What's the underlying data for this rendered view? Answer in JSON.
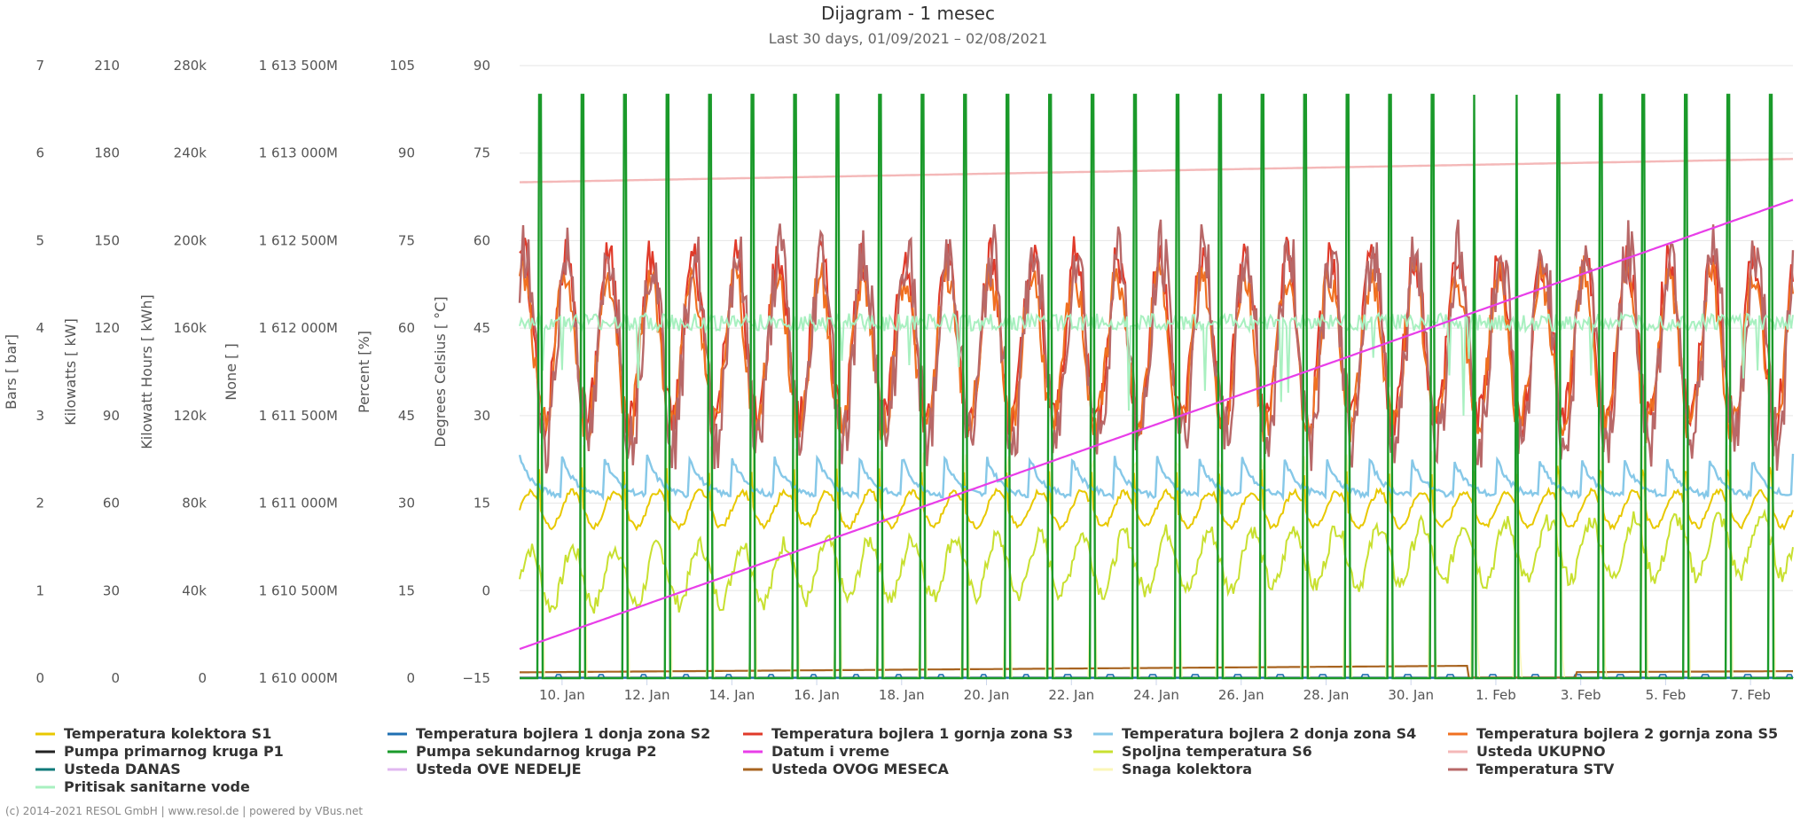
{
  "header": {
    "title": "Dijagram - 1 mesec",
    "subtitle": "Last 30 days, 01/09/2021 – 02/08/2021"
  },
  "credits": "(c) 2014–2021 RESOL GmbH | www.resol.de | powered by VBus.net",
  "chart_data": {
    "type": "line",
    "title": "Dijagram - 1 mesec",
    "subtitle": "Last 30 days, 01/09/2021 – 02/08/2021",
    "grid": true,
    "legend_position": "bottom",
    "x_axis": {
      "unit": "date",
      "range": [
        "2021-01-09",
        "2021-02-08"
      ],
      "tick_labels": [
        "10. Jan",
        "12. Jan",
        "14. Jan",
        "16. Jan",
        "18. Jan",
        "20. Jan",
        "22. Jan",
        "24. Jan",
        "26. Jan",
        "28. Jan",
        "30. Jan",
        "1. Feb",
        "3. Feb",
        "5. Feb",
        "7. Feb"
      ]
    },
    "y_axes": [
      {
        "title": "Bars [ bar]",
        "ticks": [
          "0",
          "1",
          "2",
          "3",
          "4",
          "5",
          "6",
          "7"
        ]
      },
      {
        "title": "Kilowatts [ kW]",
        "ticks": [
          "0",
          "30",
          "60",
          "90",
          "120",
          "150",
          "180",
          "210"
        ]
      },
      {
        "title": "Kilowatt Hours [ kWh]",
        "ticks": [
          "0",
          "40k",
          "80k",
          "120k",
          "160k",
          "200k",
          "240k",
          "280k"
        ]
      },
      {
        "title": "None [ ]",
        "ticks": [
          "1 610 000M",
          "1 610 500M",
          "1 611 000M",
          "1 611 500M",
          "1 612 000M",
          "1 612 500M",
          "1 613 000M",
          "1 613 500M"
        ]
      },
      {
        "title": "Percent [%]",
        "ticks": [
          "0",
          "15",
          "30",
          "45",
          "60",
          "75",
          "90",
          "105"
        ]
      },
      {
        "title": "Degrees Celsius [ °C]",
        "ticks": [
          "−15",
          "0",
          "15",
          "30",
          "45",
          "60",
          "75",
          "90"
        ],
        "range": [
          -15,
          90
        ]
      }
    ],
    "series": [
      {
        "name": "Temperatura kolektora S1",
        "color": "#e8c800",
        "approx_range_celsius": [
          10,
          20
        ]
      },
      {
        "name": "Temperatura bojlera 1 donja zona S2",
        "color": "#1f6fb2"
      },
      {
        "name": "Temperatura bojlera 1 gornja zona S3",
        "color": "#e03a2a",
        "approx_range_celsius": [
          25,
          62
        ]
      },
      {
        "name": "Temperatura bojlera 2 donja zona S4",
        "color": "#86c8e8",
        "approx_range_celsius": [
          14,
          27
        ]
      },
      {
        "name": "Temperatura bojlera 2 gornja zona S5",
        "color": "#f07020",
        "approx_range_celsius": [
          25,
          58
        ]
      },
      {
        "name": "Pumpa primarnog kruga P1",
        "color": "#222222"
      },
      {
        "name": "Pumpa sekundarnog kruga P2",
        "color": "#1a9a2a",
        "values_percent": [
          0,
          100
        ]
      },
      {
        "name": "Datum i vreme",
        "color": "#e83ee8",
        "approx_start_celsius": -10,
        "approx_end_celsius": 67
      },
      {
        "name": "Spoljna temperatura S6",
        "color": "#c8e030",
        "approx_range_celsius": [
          -5,
          15
        ]
      },
      {
        "name": "Usteda UKUPNO",
        "color": "#f4b8b8",
        "approx_start_celsius": 70,
        "approx_end_celsius": 74
      },
      {
        "name": "Usteda DANAS",
        "color": "#0f7a7a"
      },
      {
        "name": "Usteda OVE NEDELJE",
        "color": "#e0b8f0"
      },
      {
        "name": "Usteda OVOG MESECA",
        "color": "#a86420",
        "approx_start_celsius": -14,
        "approx_end_celsius": -13
      },
      {
        "name": "Snaga kolektora",
        "color": "#fbf7b8"
      },
      {
        "name": "Temperatura STV",
        "color": "#b86868",
        "approx_range_celsius": [
          20,
          65
        ]
      },
      {
        "name": "Pritisak sanitarne vode",
        "color": "#a8f0c0",
        "approx_level_celsius": 46
      }
    ]
  }
}
